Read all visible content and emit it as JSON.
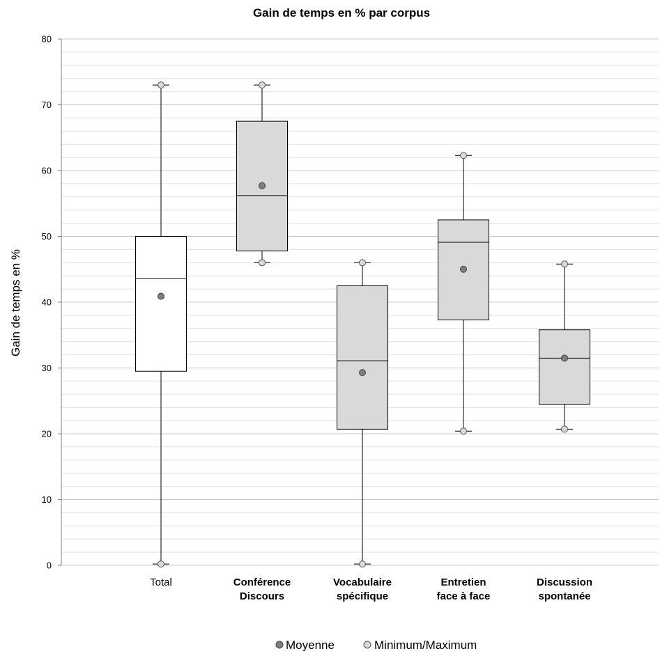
{
  "chart_data": {
    "type": "box",
    "title": "Gain de temps en % par corpus",
    "ylabel": "Gain de temps en %",
    "xlabel": "",
    "ylim": [
      0,
      80
    ],
    "y_major_ticks": [
      0,
      10,
      20,
      30,
      40,
      50,
      60,
      70,
      80
    ],
    "y_minor_step": 2,
    "grid": true,
    "legend_position": "bottom",
    "legend": [
      {
        "key": "mean",
        "label": "Moyenne",
        "color": "#7f7f7f"
      },
      {
        "key": "minmax",
        "label": "Minimum/Maximum",
        "color": "#d9d9d9"
      }
    ],
    "categories": [
      {
        "lines": [
          "Total"
        ],
        "min": 0.2,
        "q1": 29.5,
        "median": 43.6,
        "q3": 50.0,
        "max": 73.0,
        "mean": 40.9,
        "fill": "#ffffff"
      },
      {
        "lines": [
          "Conférence",
          "Discours"
        ],
        "min": 46.0,
        "q1": 47.8,
        "median": 56.2,
        "q3": 67.5,
        "max": 73.0,
        "mean": 57.7,
        "fill": "#d9d9d9"
      },
      {
        "lines": [
          "Vocabulaire",
          "spécifique"
        ],
        "min": 0.2,
        "q1": 20.7,
        "median": 31.1,
        "q3": 42.5,
        "max": 46.0,
        "mean": 29.3,
        "fill": "#d9d9d9"
      },
      {
        "lines": [
          "Entretien",
          "face à face"
        ],
        "min": 20.4,
        "q1": 37.3,
        "median": 49.1,
        "q3": 52.5,
        "max": 62.3,
        "mean": 45.0,
        "fill": "#d9d9d9"
      },
      {
        "lines": [
          "Discussion",
          "spontanée"
        ],
        "min": 20.7,
        "q1": 24.5,
        "median": 31.5,
        "q3": 35.8,
        "max": 45.8,
        "mean": 31.5,
        "fill": "#d9d9d9"
      }
    ]
  }
}
